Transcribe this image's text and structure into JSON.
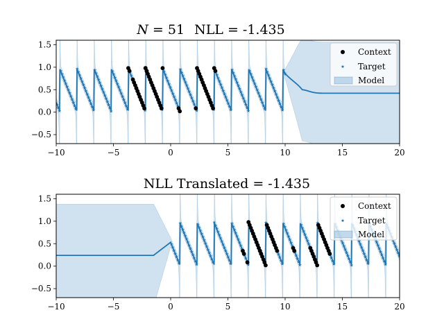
{
  "colors": {
    "model": "#1f77b4",
    "band": "#a9c8e3",
    "context": "#000000",
    "target": "#1f77b4"
  },
  "chart_data": [
    {
      "type": "line",
      "title_parts": {
        "n_symbol": "N",
        "n_text": " = 51",
        "nll_text": "NLL = -1.435"
      },
      "xlim": [
        -10,
        20
      ],
      "ylim": [
        -0.7,
        1.6
      ],
      "xticks": [
        -10,
        -5,
        0,
        5,
        10,
        15,
        20
      ],
      "yticks": [
        -0.5,
        0.0,
        0.5,
        1.0,
        1.5
      ],
      "xtick_labels": [
        "−10",
        "−5",
        "0",
        "5",
        "10",
        "15",
        "20"
      ],
      "ytick_labels": [
        "−0.5",
        "0.0",
        "0.5",
        "1.0",
        "1.5"
      ],
      "period": 1.5,
      "phase": 0.8,
      "data_start": -10,
      "data_end": 10,
      "context_ranges": [
        [
          -3.7,
          -3.6
        ],
        [
          -3.3,
          -2.1
        ],
        [
          -2.2,
          -0.7
        ],
        [
          0.7,
          0.8
        ],
        [
          2.2,
          3.9
        ]
      ],
      "legend": {
        "position": "upper-right",
        "items": [
          "Context",
          "Target",
          "Model"
        ]
      }
    },
    {
      "type": "line",
      "title": "NLL Translated = -1.435",
      "xlim": [
        -10,
        20
      ],
      "ylim": [
        -0.7,
        1.6
      ],
      "xticks": [
        -10,
        -5,
        0,
        5,
        10,
        15,
        20
      ],
      "yticks": [
        -0.5,
        0.0,
        0.5,
        1.0,
        1.5
      ],
      "xtick_labels": [
        "−10",
        "−5",
        "0",
        "5",
        "10",
        "15",
        "20"
      ],
      "ytick_labels": [
        "−0.5",
        "0.0",
        "0.5",
        "1.0",
        "1.5"
      ],
      "period": 1.5,
      "phase": 0.8,
      "data_start": 0,
      "data_end": 20,
      "context_ranges": [
        [
          6.3,
          6.4
        ],
        [
          6.7,
          7.9
        ],
        [
          7.8,
          9.3
        ],
        [
          10.7,
          10.8
        ],
        [
          12.2,
          13.9
        ]
      ],
      "legend": {
        "position": "upper-right",
        "items": [
          "Context",
          "Target",
          "Model"
        ]
      }
    }
  ]
}
